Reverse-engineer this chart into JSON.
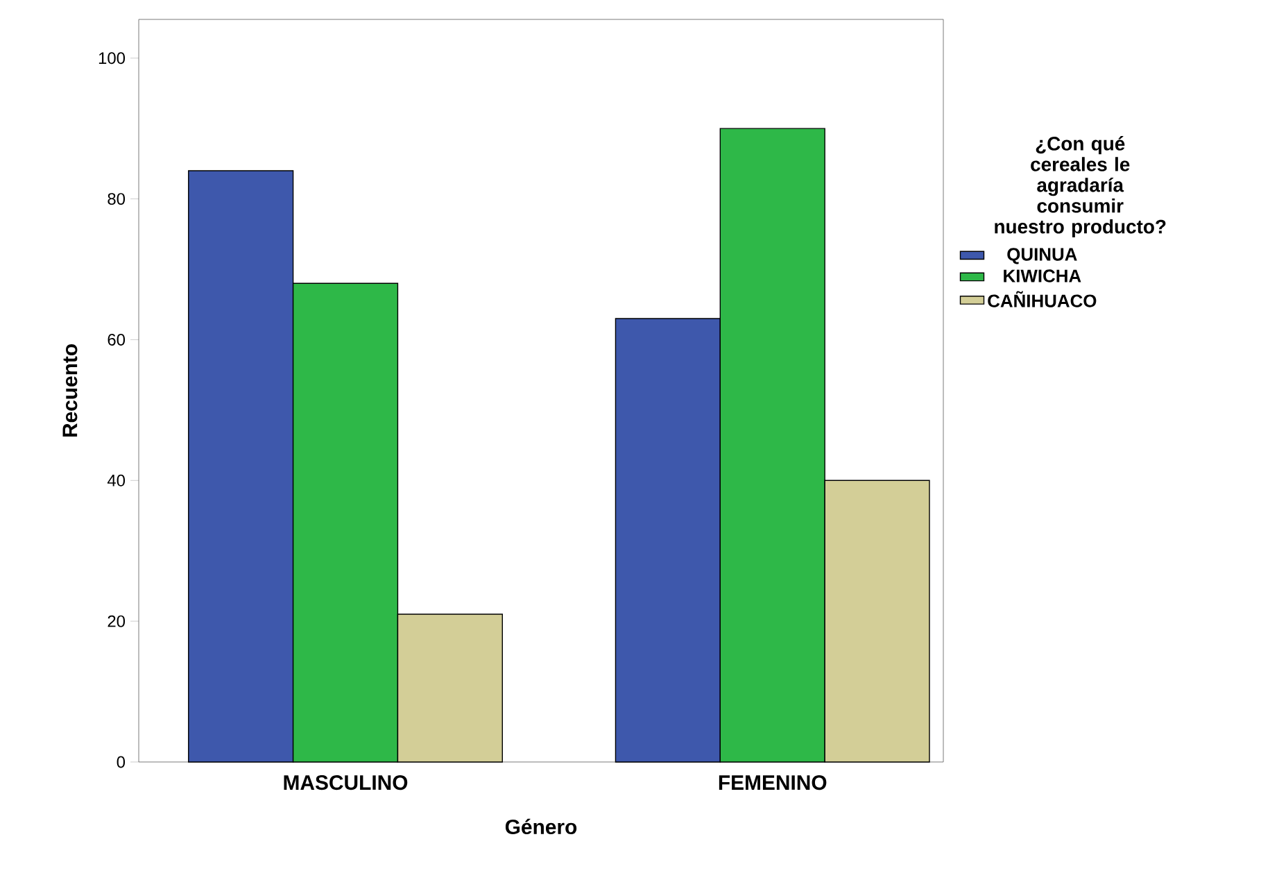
{
  "chart_data": {
    "type": "bar",
    "xlabel": "Género",
    "ylabel": "Recuento",
    "legend_title": "¿Con qué cereales le agradaría consumir nuestro producto?",
    "categories": [
      "MASCULINO",
      "FEMENINO"
    ],
    "series": [
      {
        "name": "QUINUA",
        "color": "#3e58ac",
        "values": [
          84,
          63
        ]
      },
      {
        "name": "KIWICHA",
        "color": "#2eb848",
        "values": [
          68,
          90
        ]
      },
      {
        "name": "CAÑIHUACO",
        "color": "#d3ce97",
        "values": [
          21,
          40
        ]
      }
    ],
    "ylim": [
      0,
      105.5
    ],
    "yticks": [
      0,
      20,
      40,
      60,
      80,
      100
    ],
    "grid": false,
    "legend": "right"
  }
}
